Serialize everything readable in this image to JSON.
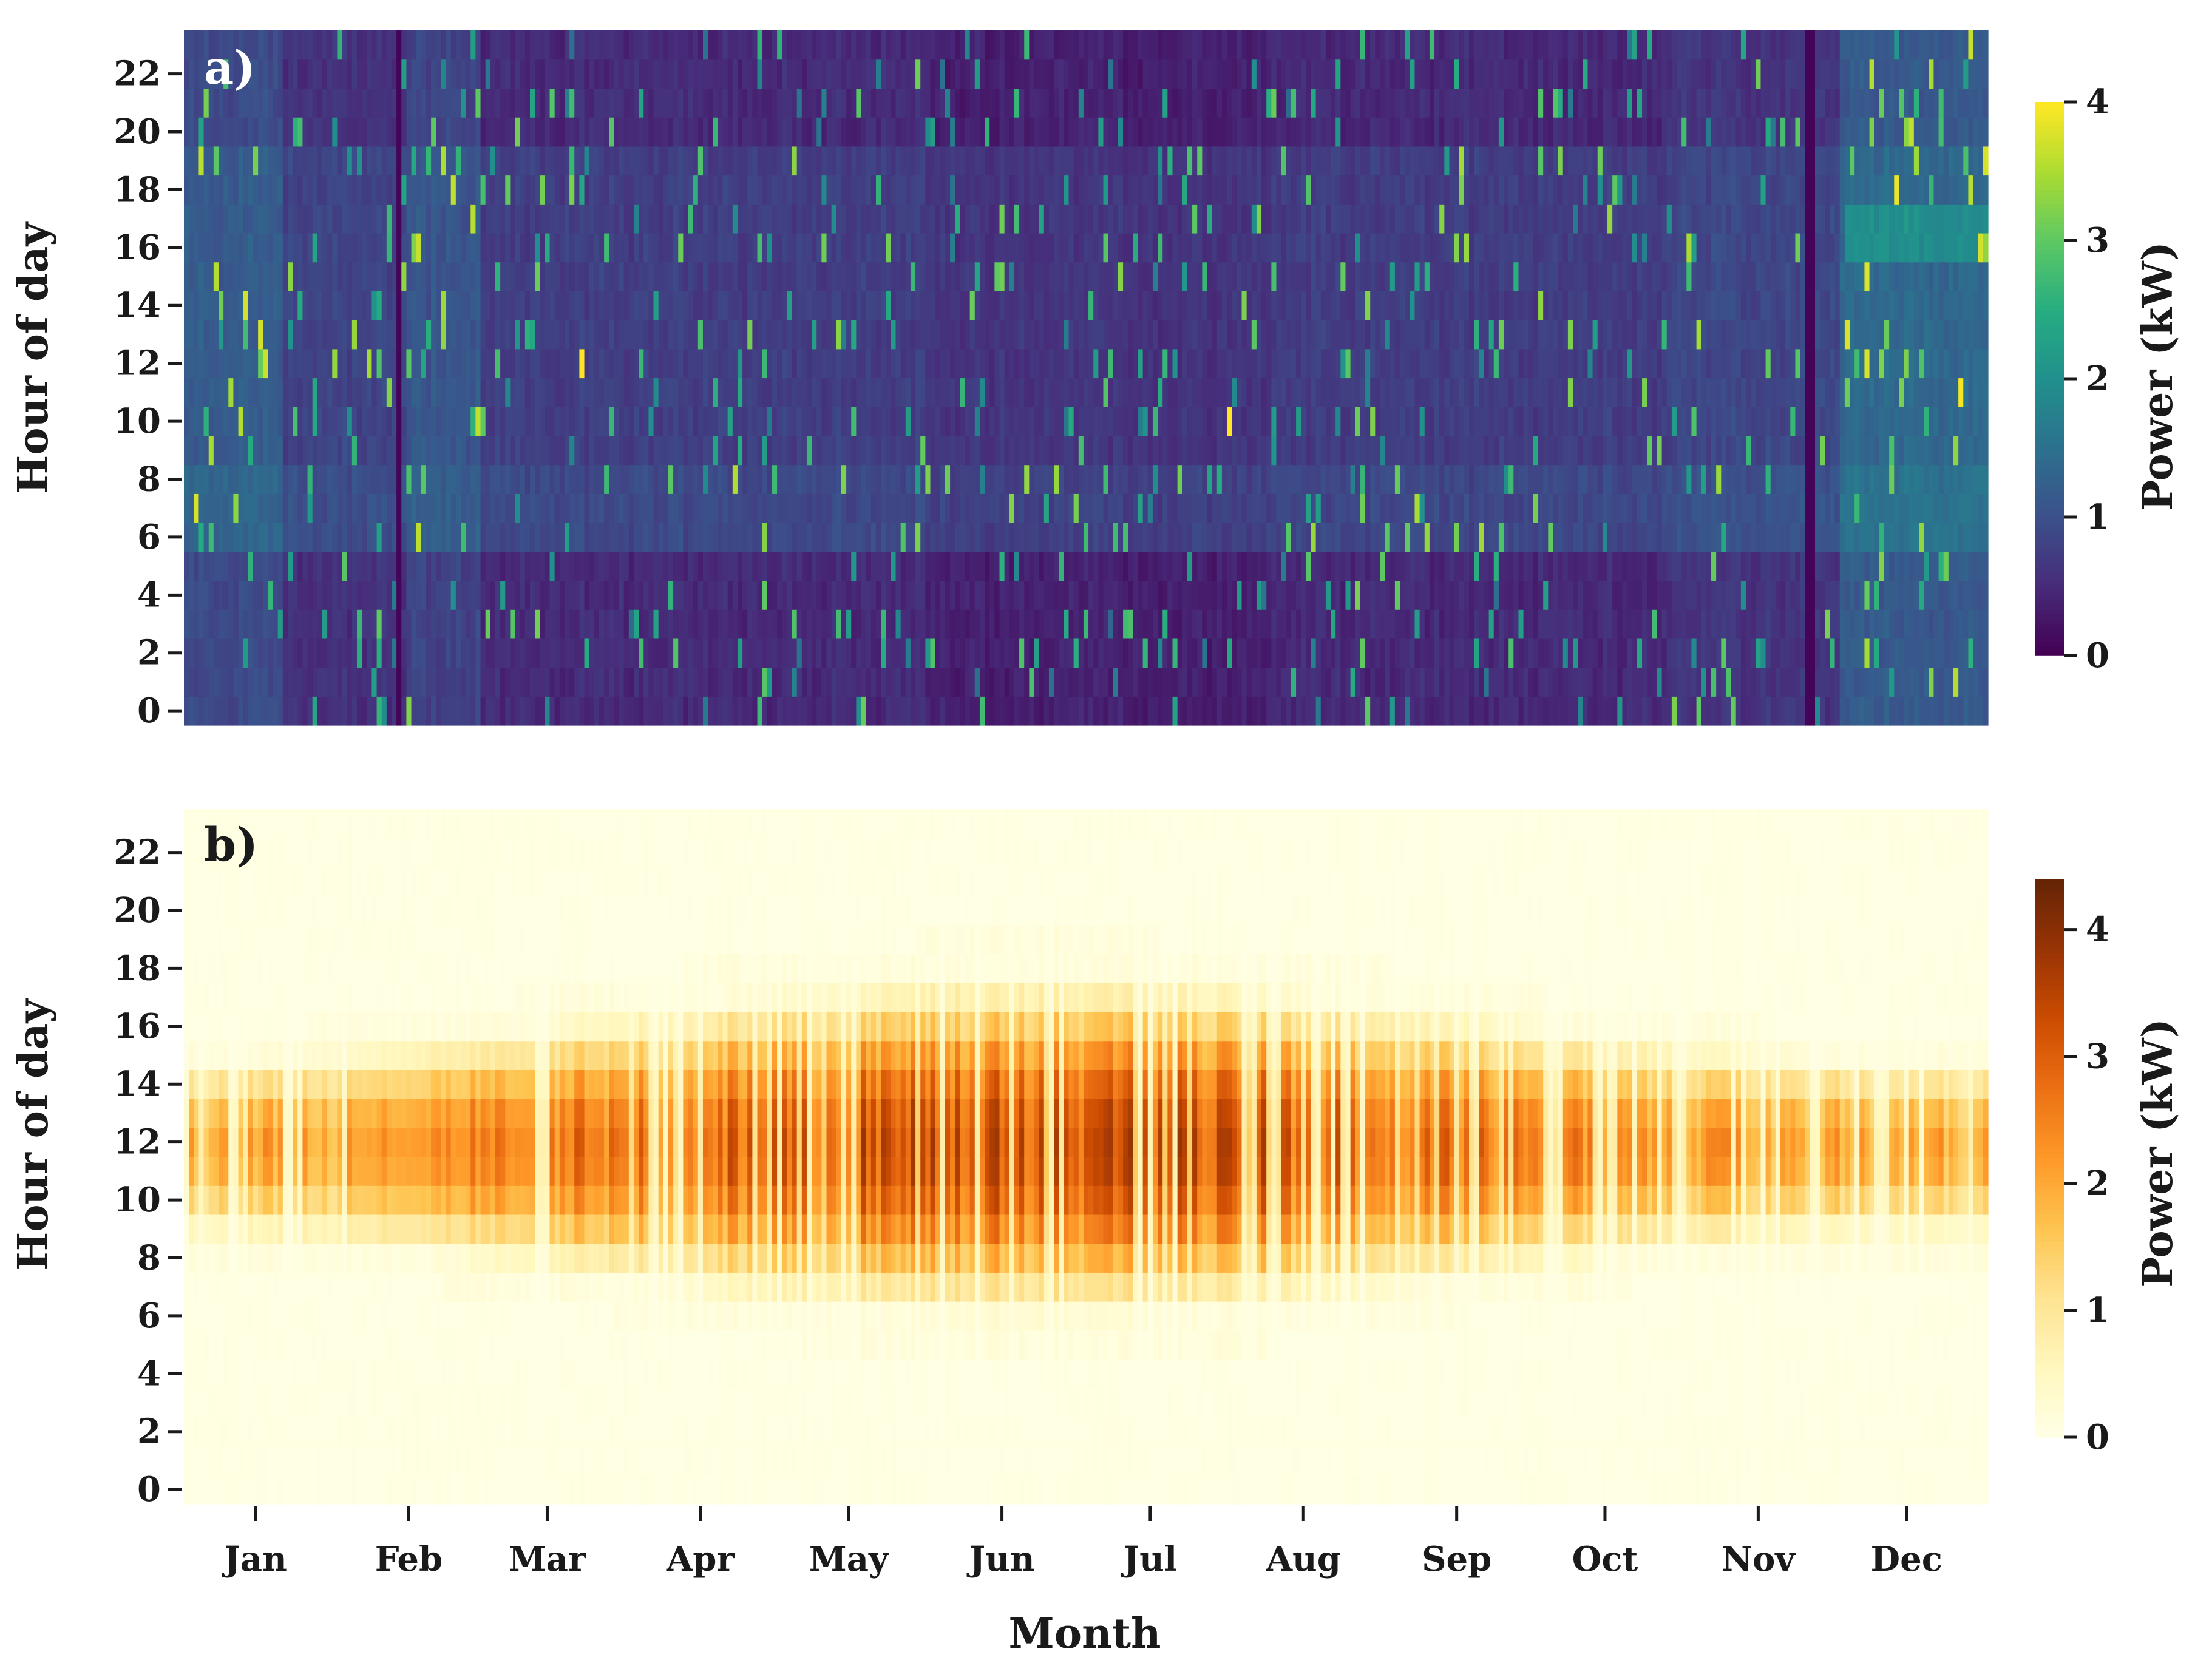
{
  "chart_data": [
    {
      "type": "heatmap",
      "panel_label": "a)",
      "panel_label_color": "#ffffff",
      "xlabel": "",
      "ylabel": "Hour of day",
      "colorbar_label": "Power (kW)",
      "colormap": "viridis",
      "value_range": [
        0,
        4
      ],
      "colorbar_ticks": [
        "0",
        "1",
        "2",
        "3",
        "4"
      ],
      "y_ticks": [
        "0",
        "2",
        "4",
        "6",
        "8",
        "10",
        "12",
        "14",
        "16",
        "18",
        "20",
        "22"
      ],
      "x_ticks": [],
      "grid": false,
      "description_values": {
        "rows": "hours 0-23",
        "columns": "days of year 1-365",
        "baseline_kw_range": [
          0.2,
          1.0
        ],
        "winter_elevated_kw": [
          1.0,
          2.5
        ],
        "peaks_kw": 4.0,
        "daytime_hours_elevated": [
          6,
          19
        ]
      }
    },
    {
      "type": "heatmap",
      "panel_label": "b)",
      "panel_label_color": "#1a1a1a",
      "xlabel": "Month",
      "ylabel": "Hour of day",
      "colorbar_label": "Power (kW)",
      "colormap": "YlOrBr",
      "value_range": [
        0,
        4.4
      ],
      "colorbar_ticks": [
        "0",
        "1",
        "2",
        "3",
        "4"
      ],
      "y_ticks": [
        "0",
        "2",
        "4",
        "6",
        "8",
        "10",
        "12",
        "14",
        "16",
        "18",
        "20",
        "22"
      ],
      "x_ticks": [
        "Jan",
        "Feb",
        "Mar",
        "Apr",
        "May",
        "Jun",
        "Jul",
        "Aug",
        "Sep",
        "Oct",
        "Nov",
        "Dec"
      ],
      "grid": false,
      "description_values": {
        "rows": "hours 0-23",
        "columns": "days of year 1-365",
        "peak_kw": 4.4,
        "summer_generation_hours": [
          6,
          20
        ],
        "winter_generation_hours": [
          10,
          15
        ]
      }
    }
  ]
}
